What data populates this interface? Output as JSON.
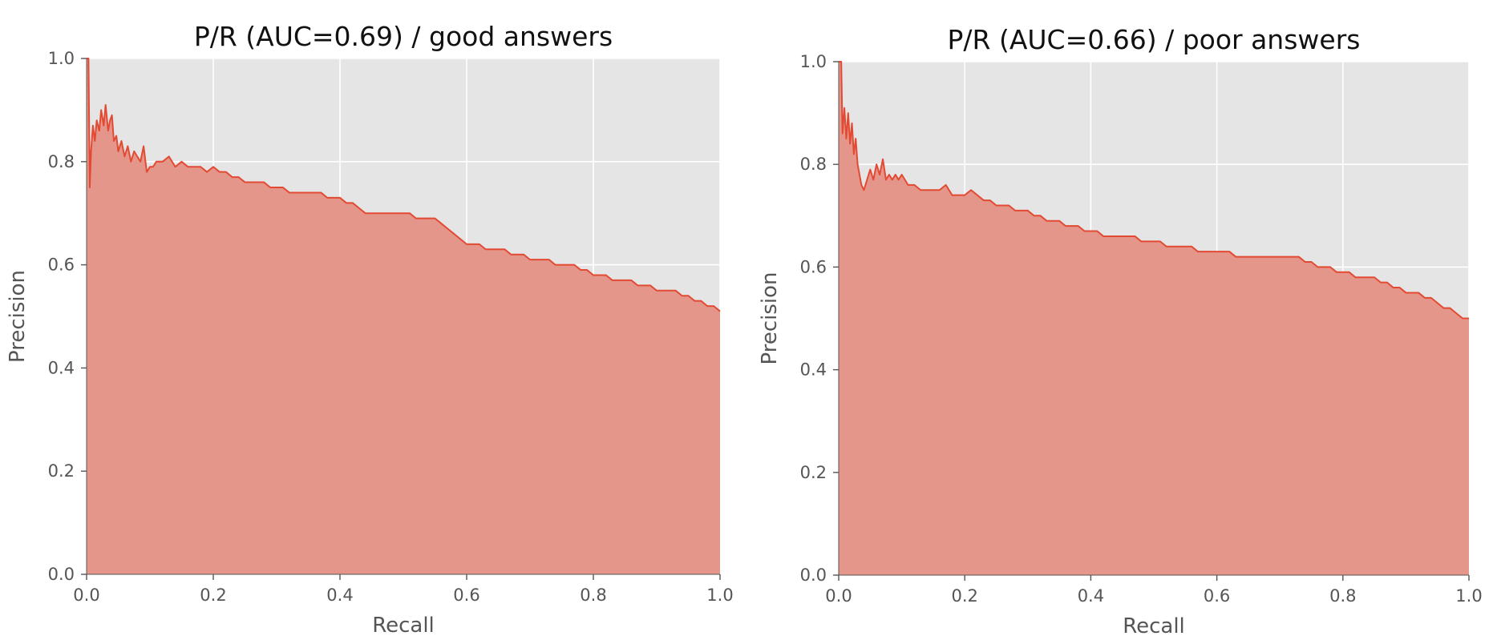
{
  "chart_data": [
    {
      "type": "area",
      "title": "P/R (AUC=0.69) / good answers",
      "xlabel": "Recall",
      "ylabel": "Precision",
      "xlim": [
        0.0,
        1.0
      ],
      "ylim": [
        0.0,
        1.0
      ],
      "xticks": [
        "0.0",
        "0.2",
        "0.4",
        "0.6",
        "0.8",
        "1.0"
      ],
      "yticks": [
        "0.0",
        "0.2",
        "0.4",
        "0.6",
        "0.8",
        "1.0"
      ],
      "grid": true,
      "line_color": "#E24A33",
      "fill_color": "#E5968A",
      "background_color": "#E5E5E5",
      "series": [
        {
          "x": [
            0.0,
            0.003,
            0.005,
            0.007,
            0.01,
            0.013,
            0.016,
            0.02,
            0.023,
            0.027,
            0.03,
            0.034,
            0.037,
            0.04,
            0.043,
            0.047,
            0.05,
            0.055,
            0.06,
            0.065,
            0.07,
            0.075,
            0.08,
            0.085,
            0.09,
            0.095,
            0.1,
            0.105,
            0.11,
            0.12,
            0.13,
            0.14,
            0.15,
            0.16,
            0.17,
            0.18,
            0.19,
            0.2,
            0.21,
            0.22,
            0.23,
            0.24,
            0.25,
            0.26,
            0.27,
            0.28,
            0.29,
            0.3,
            0.31,
            0.32,
            0.33,
            0.34,
            0.35,
            0.36,
            0.37,
            0.38,
            0.39,
            0.4,
            0.41,
            0.42,
            0.43,
            0.44,
            0.45,
            0.46,
            0.47,
            0.48,
            0.49,
            0.5,
            0.51,
            0.52,
            0.53,
            0.54,
            0.55,
            0.56,
            0.57,
            0.58,
            0.59,
            0.6,
            0.61,
            0.62,
            0.63,
            0.64,
            0.65,
            0.66,
            0.67,
            0.68,
            0.69,
            0.7,
            0.71,
            0.72,
            0.73,
            0.74,
            0.75,
            0.76,
            0.77,
            0.78,
            0.79,
            0.8,
            0.81,
            0.82,
            0.83,
            0.84,
            0.85,
            0.86,
            0.87,
            0.88,
            0.89,
            0.9,
            0.91,
            0.92,
            0.93,
            0.94,
            0.95,
            0.96,
            0.97,
            0.98,
            0.99,
            1.0
          ],
          "y": [
            1.0,
            1.0,
            0.75,
            0.82,
            0.87,
            0.84,
            0.88,
            0.86,
            0.9,
            0.87,
            0.91,
            0.86,
            0.88,
            0.89,
            0.84,
            0.85,
            0.82,
            0.84,
            0.81,
            0.83,
            0.8,
            0.82,
            0.81,
            0.8,
            0.83,
            0.78,
            0.79,
            0.79,
            0.8,
            0.8,
            0.81,
            0.79,
            0.8,
            0.79,
            0.79,
            0.79,
            0.78,
            0.79,
            0.78,
            0.78,
            0.77,
            0.77,
            0.76,
            0.76,
            0.76,
            0.76,
            0.75,
            0.75,
            0.75,
            0.74,
            0.74,
            0.74,
            0.74,
            0.74,
            0.74,
            0.73,
            0.73,
            0.73,
            0.72,
            0.72,
            0.71,
            0.7,
            0.7,
            0.7,
            0.7,
            0.7,
            0.7,
            0.7,
            0.7,
            0.69,
            0.69,
            0.69,
            0.69,
            0.68,
            0.67,
            0.66,
            0.65,
            0.64,
            0.64,
            0.64,
            0.63,
            0.63,
            0.63,
            0.63,
            0.62,
            0.62,
            0.62,
            0.61,
            0.61,
            0.61,
            0.61,
            0.6,
            0.6,
            0.6,
            0.6,
            0.59,
            0.59,
            0.58,
            0.58,
            0.58,
            0.57,
            0.57,
            0.57,
            0.57,
            0.56,
            0.56,
            0.56,
            0.55,
            0.55,
            0.55,
            0.55,
            0.54,
            0.54,
            0.53,
            0.53,
            0.52,
            0.52,
            0.51
          ]
        }
      ]
    },
    {
      "type": "area",
      "title": "P/R (AUC=0.66) / poor answers",
      "xlabel": "Recall",
      "ylabel": "Precision",
      "xlim": [
        0.0,
        1.0
      ],
      "ylim": [
        0.0,
        1.0
      ],
      "xticks": [
        "0.0",
        "0.2",
        "0.4",
        "0.6",
        "0.8",
        "1.0"
      ],
      "yticks": [
        "0.0",
        "0.2",
        "0.4",
        "0.6",
        "0.8",
        "1.0"
      ],
      "grid": true,
      "line_color": "#E24A33",
      "fill_color": "#E5968A",
      "background_color": "#E5E5E5",
      "series": [
        {
          "x": [
            0.0,
            0.004,
            0.006,
            0.009,
            0.012,
            0.015,
            0.018,
            0.021,
            0.024,
            0.027,
            0.03,
            0.033,
            0.036,
            0.04,
            0.045,
            0.05,
            0.055,
            0.06,
            0.065,
            0.07,
            0.075,
            0.08,
            0.085,
            0.09,
            0.095,
            0.1,
            0.11,
            0.12,
            0.13,
            0.14,
            0.15,
            0.16,
            0.17,
            0.18,
            0.19,
            0.2,
            0.21,
            0.22,
            0.23,
            0.24,
            0.25,
            0.26,
            0.27,
            0.28,
            0.29,
            0.3,
            0.31,
            0.32,
            0.33,
            0.34,
            0.35,
            0.36,
            0.37,
            0.38,
            0.39,
            0.4,
            0.41,
            0.42,
            0.43,
            0.44,
            0.45,
            0.46,
            0.47,
            0.48,
            0.49,
            0.5,
            0.51,
            0.52,
            0.53,
            0.54,
            0.55,
            0.56,
            0.57,
            0.58,
            0.59,
            0.6,
            0.61,
            0.62,
            0.63,
            0.64,
            0.65,
            0.66,
            0.67,
            0.68,
            0.69,
            0.7,
            0.71,
            0.72,
            0.73,
            0.74,
            0.75,
            0.76,
            0.77,
            0.78,
            0.79,
            0.8,
            0.81,
            0.82,
            0.83,
            0.84,
            0.85,
            0.86,
            0.87,
            0.88,
            0.89,
            0.9,
            0.91,
            0.92,
            0.93,
            0.94,
            0.95,
            0.96,
            0.97,
            0.98,
            0.99,
            1.0
          ],
          "y": [
            1.0,
            1.0,
            0.86,
            0.91,
            0.85,
            0.9,
            0.84,
            0.88,
            0.82,
            0.85,
            0.8,
            0.78,
            0.76,
            0.75,
            0.77,
            0.79,
            0.77,
            0.8,
            0.78,
            0.81,
            0.77,
            0.78,
            0.77,
            0.78,
            0.77,
            0.78,
            0.76,
            0.76,
            0.75,
            0.75,
            0.75,
            0.75,
            0.76,
            0.74,
            0.74,
            0.74,
            0.75,
            0.74,
            0.73,
            0.73,
            0.72,
            0.72,
            0.72,
            0.71,
            0.71,
            0.71,
            0.7,
            0.7,
            0.69,
            0.69,
            0.69,
            0.68,
            0.68,
            0.68,
            0.67,
            0.67,
            0.67,
            0.66,
            0.66,
            0.66,
            0.66,
            0.66,
            0.66,
            0.65,
            0.65,
            0.65,
            0.65,
            0.64,
            0.64,
            0.64,
            0.64,
            0.64,
            0.63,
            0.63,
            0.63,
            0.63,
            0.63,
            0.63,
            0.62,
            0.62,
            0.62,
            0.62,
            0.62,
            0.62,
            0.62,
            0.62,
            0.62,
            0.62,
            0.62,
            0.61,
            0.61,
            0.6,
            0.6,
            0.6,
            0.59,
            0.59,
            0.59,
            0.58,
            0.58,
            0.58,
            0.58,
            0.57,
            0.57,
            0.56,
            0.56,
            0.55,
            0.55,
            0.55,
            0.54,
            0.54,
            0.53,
            0.52,
            0.52,
            0.51,
            0.5,
            0.5
          ]
        }
      ]
    }
  ]
}
